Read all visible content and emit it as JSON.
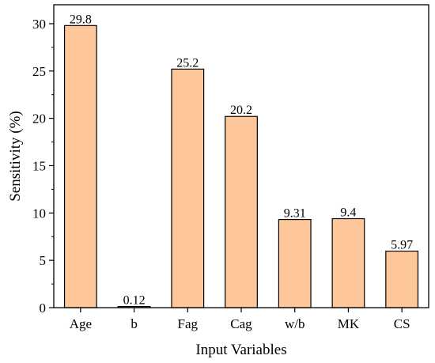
{
  "chart_data": {
    "type": "bar",
    "title": "",
    "xlabel": "Input Variables",
    "ylabel": "Sensitivity (%)",
    "categories": [
      "Age",
      "b",
      "Fag",
      "Cag",
      "w/b",
      "MK",
      "CS"
    ],
    "values": [
      29.8,
      0.12,
      25.2,
      20.2,
      9.31,
      9.4,
      5.97
    ],
    "data_labels": [
      "29.8",
      "0.12",
      "25.2",
      "20.2",
      "9.31",
      "9.4",
      "5.97"
    ],
    "ylim": [
      0,
      32
    ],
    "yticks": [
      0,
      5,
      10,
      15,
      20,
      25,
      30
    ],
    "ytick_labels": [
      "0",
      "5",
      "10",
      "15",
      "20",
      "25",
      "30"
    ],
    "bar_color": "#fdc799",
    "bar_edge_color": "#000000",
    "grid": false,
    "legend": "none"
  }
}
